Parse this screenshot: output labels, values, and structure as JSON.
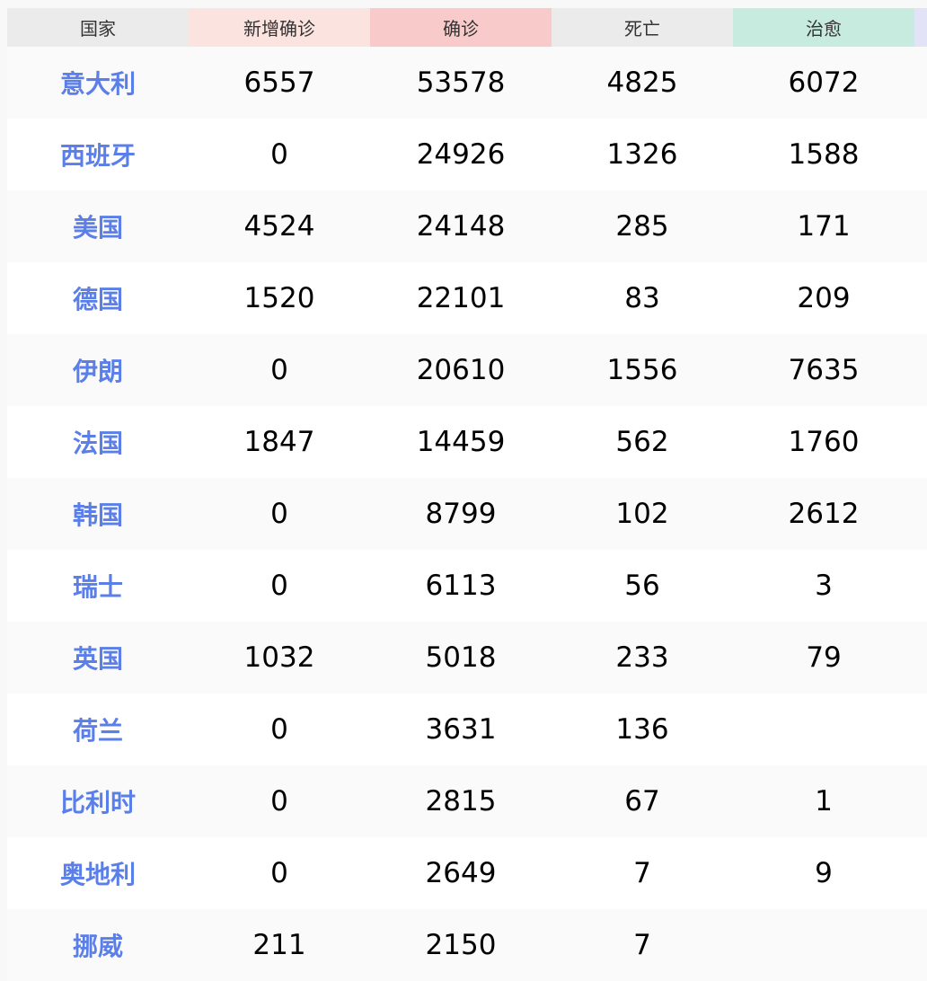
{
  "header": {
    "columns": [
      {
        "label": "国家",
        "color": "#ebebeb"
      },
      {
        "label": "新增确诊",
        "color": "#fbe3df"
      },
      {
        "label": "确诊",
        "color": "#f8cbca"
      },
      {
        "label": "死亡",
        "color": "#ebebeb"
      },
      {
        "label": "治愈",
        "color": "#c7ebdf"
      },
      {
        "label": "",
        "color": "#e3e3f7"
      }
    ]
  },
  "rows": [
    [
      "意大利",
      "6557",
      "53578",
      "4825",
      "6072"
    ],
    [
      "西班牙",
      "0",
      "24926",
      "1326",
      "1588"
    ],
    [
      "美国",
      "4524",
      "24148",
      "285",
      "171"
    ],
    [
      "德国",
      "1520",
      "22101",
      "83",
      "209"
    ],
    [
      "伊朗",
      "0",
      "20610",
      "1556",
      "7635"
    ],
    [
      "法国",
      "1847",
      "14459",
      "562",
      "1760"
    ],
    [
      "韩国",
      "0",
      "8799",
      "102",
      "2612"
    ],
    [
      "瑞士",
      "0",
      "6113",
      "56",
      "3"
    ],
    [
      "英国",
      "1032",
      "5018",
      "233",
      "79"
    ],
    [
      "荷兰",
      "0",
      "3631",
      "136",
      ""
    ],
    [
      "比利时",
      "0",
      "2815",
      "67",
      "1"
    ],
    [
      "奥地利",
      "0",
      "2649",
      "7",
      "9"
    ],
    [
      "挪威",
      "211",
      "2150",
      "7",
      ""
    ]
  ]
}
